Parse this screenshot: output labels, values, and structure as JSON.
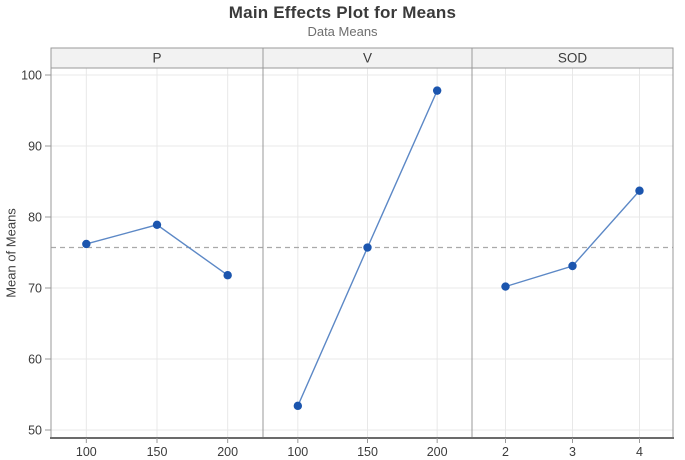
{
  "chart_data": {
    "type": "line",
    "title": "Main Effects Plot for Means",
    "subtitle": "Data Means",
    "ylabel": "Mean of Means",
    "xlabel": "",
    "ylim": [
      50,
      100
    ],
    "yticks": [
      50,
      60,
      70,
      80,
      90,
      100
    ],
    "grid": true,
    "legend": "none",
    "reference_line_value": 75.7,
    "panels": [
      {
        "label": "P",
        "categories": [
          "100",
          "150",
          "200"
        ],
        "values": [
          76.2,
          78.9,
          71.8
        ]
      },
      {
        "label": "V",
        "categories": [
          "100",
          "150",
          "200"
        ],
        "values": [
          53.4,
          75.7,
          97.8
        ]
      },
      {
        "label": "SOD",
        "categories": [
          "2",
          "3",
          "4"
        ],
        "values": [
          70.2,
          73.1,
          83.7
        ]
      }
    ],
    "colors": {
      "marker": "#1b55ae",
      "line": "#5c88c6",
      "reference_line": "#a9a9a9",
      "gridline": "#e8e8e8",
      "panel_border": "#999999",
      "bottom_axis": "#6b6b6b",
      "header_fill": "#f2f2f2",
      "tick_text": "#3b3b3b",
      "header_text": "#3b3b3b"
    }
  }
}
